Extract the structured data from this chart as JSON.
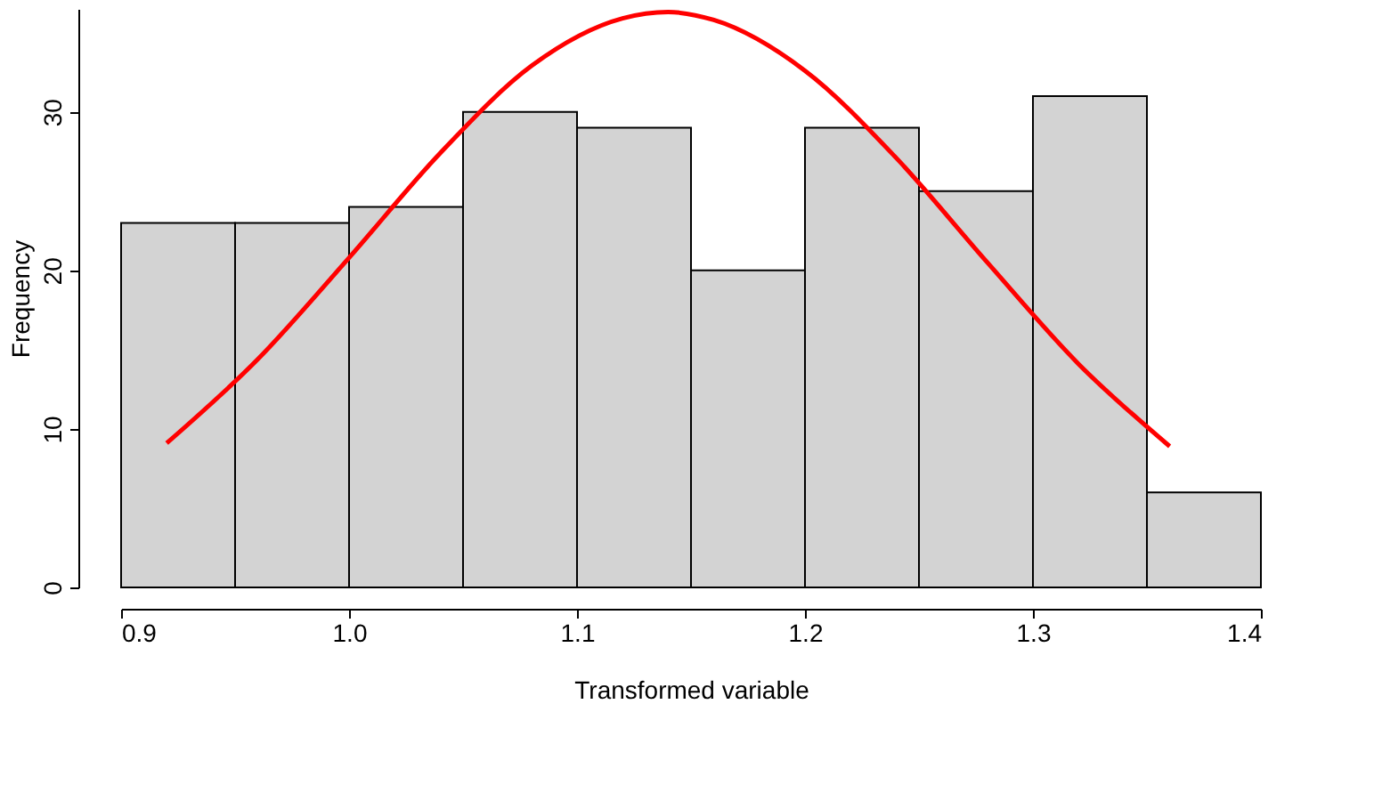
{
  "chart_data": {
    "type": "histogram",
    "xlabel": "Transformed variable",
    "ylabel": "Frequency",
    "bins": [
      0.9,
      0.95,
      1.0,
      1.05,
      1.1,
      1.15,
      1.2,
      1.25,
      1.3,
      1.35,
      1.4
    ],
    "values": [
      23,
      23,
      24,
      30,
      29,
      20,
      29,
      25,
      31,
      6
    ],
    "color": "#d3d3d3",
    "series": [
      {
        "type": "line",
        "color": "#ff0000",
        "x": [
          0.92,
          0.96,
          1.0,
          1.04,
          1.08,
          1.12,
          1.14,
          1.16,
          1.2,
          1.24,
          1.28,
          1.32,
          1.36
        ],
        "values": [
          9.1,
          14.4,
          20.8,
          27.4,
          32.9,
          35.9,
          36.3,
          35.8,
          32.6,
          27.1,
          20.5,
          14.1,
          8.9
        ]
      }
    ],
    "xlim": [
      0.9,
      1.4
    ],
    "xticks": [
      0.9,
      {
        "value": 1.0,
        "label": "1.0"
      },
      1.1,
      1.2,
      1.3,
      1.4
    ],
    "ylim": [
      0,
      36.5
    ],
    "yticks": [
      0,
      10,
      20,
      30
    ],
    "grid": false
  }
}
